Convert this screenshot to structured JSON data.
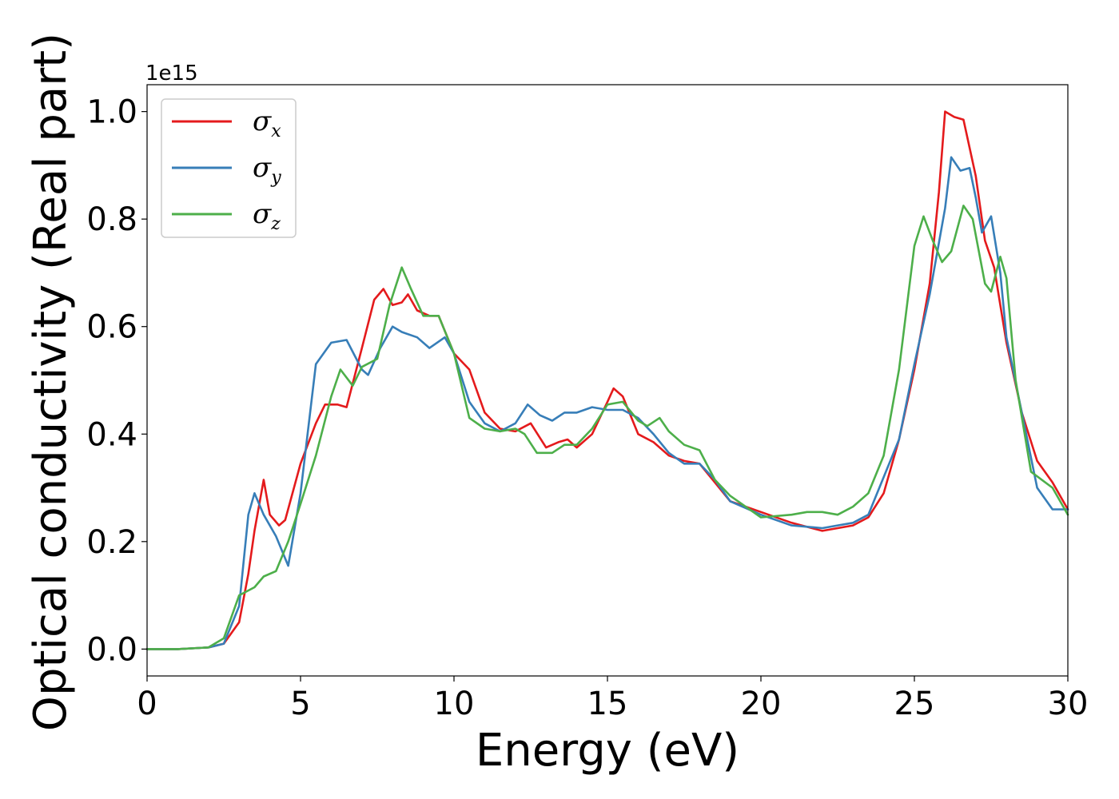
{
  "chart_data": {
    "type": "line",
    "xlabel": "Energy (eV)",
    "ylabel": "Optical conductivity (Real part)",
    "y_offset_label": "1e15",
    "xlim": [
      0,
      30
    ],
    "ylim": [
      -0.05,
      1.05
    ],
    "xticks": [
      0,
      5,
      10,
      15,
      20,
      25,
      30
    ],
    "yticks": [
      0.0,
      0.2,
      0.4,
      0.6,
      0.8,
      1.0
    ],
    "xtick_labels": [
      "0",
      "5",
      "10",
      "15",
      "20",
      "25",
      "30"
    ],
    "ytick_labels": [
      "0.0",
      "0.2",
      "0.4",
      "0.6",
      "0.8",
      "1.0"
    ],
    "grid": false,
    "legend": "top-left",
    "series": [
      {
        "name": "σx",
        "base": "σ",
        "sub": "x",
        "color": "#e41a1c",
        "points": [
          [
            0,
            0
          ],
          [
            1,
            0
          ],
          [
            2,
            0.003
          ],
          [
            2.5,
            0.01
          ],
          [
            3,
            0.05
          ],
          [
            3.3,
            0.14
          ],
          [
            3.5,
            0.22
          ],
          [
            3.8,
            0.315
          ],
          [
            4.0,
            0.25
          ],
          [
            4.3,
            0.23
          ],
          [
            4.5,
            0.24
          ],
          [
            5,
            0.345
          ],
          [
            5.5,
            0.42
          ],
          [
            5.8,
            0.455
          ],
          [
            6.2,
            0.455
          ],
          [
            6.5,
            0.45
          ],
          [
            7,
            0.56
          ],
          [
            7.4,
            0.65
          ],
          [
            7.7,
            0.67
          ],
          [
            8.0,
            0.64
          ],
          [
            8.3,
            0.645
          ],
          [
            8.5,
            0.66
          ],
          [
            8.8,
            0.63
          ],
          [
            9.2,
            0.62
          ],
          [
            9.5,
            0.62
          ],
          [
            10,
            0.55
          ],
          [
            10.5,
            0.52
          ],
          [
            11,
            0.44
          ],
          [
            11.5,
            0.41
          ],
          [
            12,
            0.405
          ],
          [
            12.5,
            0.42
          ],
          [
            13,
            0.375
          ],
          [
            13.4,
            0.385
          ],
          [
            13.7,
            0.39
          ],
          [
            14,
            0.375
          ],
          [
            14.5,
            0.4
          ],
          [
            15,
            0.46
          ],
          [
            15.2,
            0.485
          ],
          [
            15.5,
            0.47
          ],
          [
            16,
            0.4
          ],
          [
            16.5,
            0.385
          ],
          [
            17,
            0.36
          ],
          [
            17.5,
            0.35
          ],
          [
            18,
            0.345
          ],
          [
            18.5,
            0.31
          ],
          [
            19,
            0.275
          ],
          [
            20,
            0.255
          ],
          [
            21,
            0.235
          ],
          [
            22,
            0.22
          ],
          [
            22.5,
            0.225
          ],
          [
            23,
            0.23
          ],
          [
            23.5,
            0.245
          ],
          [
            24,
            0.29
          ],
          [
            24.5,
            0.39
          ],
          [
            25,
            0.52
          ],
          [
            25.5,
            0.68
          ],
          [
            25.8,
            0.85
          ],
          [
            26.0,
            1.0
          ],
          [
            26.3,
            0.99
          ],
          [
            26.6,
            0.985
          ],
          [
            27,
            0.88
          ],
          [
            27.3,
            0.76
          ],
          [
            27.6,
            0.71
          ],
          [
            28,
            0.57
          ],
          [
            28.5,
            0.44
          ],
          [
            29,
            0.35
          ],
          [
            29.5,
            0.31
          ],
          [
            30,
            0.26
          ]
        ]
      },
      {
        "name": "σy",
        "base": "σ",
        "sub": "y",
        "color": "#377eb8",
        "points": [
          [
            0,
            0
          ],
          [
            1,
            0
          ],
          [
            2,
            0.003
          ],
          [
            2.5,
            0.01
          ],
          [
            3,
            0.08
          ],
          [
            3.3,
            0.25
          ],
          [
            3.5,
            0.29
          ],
          [
            3.8,
            0.25
          ],
          [
            4.2,
            0.21
          ],
          [
            4.6,
            0.155
          ],
          [
            5,
            0.29
          ],
          [
            5.5,
            0.53
          ],
          [
            6,
            0.57
          ],
          [
            6.5,
            0.575
          ],
          [
            7,
            0.52
          ],
          [
            7.2,
            0.51
          ],
          [
            7.6,
            0.56
          ],
          [
            8.0,
            0.6
          ],
          [
            8.3,
            0.59
          ],
          [
            8.8,
            0.58
          ],
          [
            9.2,
            0.56
          ],
          [
            9.7,
            0.58
          ],
          [
            10,
            0.55
          ],
          [
            10.5,
            0.46
          ],
          [
            11,
            0.42
          ],
          [
            11.5,
            0.405
          ],
          [
            12,
            0.42
          ],
          [
            12.4,
            0.455
          ],
          [
            12.8,
            0.435
          ],
          [
            13.2,
            0.425
          ],
          [
            13.6,
            0.44
          ],
          [
            14,
            0.44
          ],
          [
            14.5,
            0.45
          ],
          [
            15,
            0.445
          ],
          [
            15.5,
            0.445
          ],
          [
            16,
            0.43
          ],
          [
            16.5,
            0.4
          ],
          [
            17,
            0.365
          ],
          [
            17.5,
            0.345
          ],
          [
            18,
            0.345
          ],
          [
            18.5,
            0.315
          ],
          [
            19,
            0.275
          ],
          [
            20,
            0.25
          ],
          [
            21,
            0.23
          ],
          [
            22,
            0.225
          ],
          [
            22.5,
            0.23
          ],
          [
            23,
            0.235
          ],
          [
            23.5,
            0.25
          ],
          [
            24,
            0.32
          ],
          [
            24.5,
            0.39
          ],
          [
            25,
            0.53
          ],
          [
            25.5,
            0.66
          ],
          [
            26,
            0.82
          ],
          [
            26.2,
            0.915
          ],
          [
            26.5,
            0.89
          ],
          [
            26.8,
            0.895
          ],
          [
            27.0,
            0.84
          ],
          [
            27.2,
            0.775
          ],
          [
            27.5,
            0.805
          ],
          [
            27.8,
            0.7
          ],
          [
            28,
            0.58
          ],
          [
            28.5,
            0.44
          ],
          [
            29,
            0.3
          ],
          [
            29.5,
            0.26
          ],
          [
            30,
            0.26
          ]
        ]
      },
      {
        "name": "σz",
        "base": "σ",
        "sub": "z",
        "color": "#4daf4a",
        "points": [
          [
            0,
            0
          ],
          [
            1,
            0
          ],
          [
            2,
            0.003
          ],
          [
            2.5,
            0.02
          ],
          [
            3,
            0.1
          ],
          [
            3.5,
            0.115
          ],
          [
            3.8,
            0.135
          ],
          [
            4.2,
            0.145
          ],
          [
            4.6,
            0.2
          ],
          [
            5,
            0.27
          ],
          [
            5.5,
            0.36
          ],
          [
            6,
            0.47
          ],
          [
            6.3,
            0.52
          ],
          [
            6.7,
            0.49
          ],
          [
            7,
            0.525
          ],
          [
            7.5,
            0.54
          ],
          [
            7.9,
            0.64
          ],
          [
            8.3,
            0.71
          ],
          [
            8.6,
            0.67
          ],
          [
            9.0,
            0.62
          ],
          [
            9.5,
            0.62
          ],
          [
            10,
            0.55
          ],
          [
            10.5,
            0.43
          ],
          [
            11,
            0.41
          ],
          [
            11.5,
            0.405
          ],
          [
            12,
            0.41
          ],
          [
            12.3,
            0.4
          ],
          [
            12.7,
            0.365
          ],
          [
            13.2,
            0.365
          ],
          [
            13.6,
            0.38
          ],
          [
            14,
            0.38
          ],
          [
            14.5,
            0.41
          ],
          [
            15,
            0.455
          ],
          [
            15.5,
            0.46
          ],
          [
            16,
            0.425
          ],
          [
            16.3,
            0.415
          ],
          [
            16.7,
            0.43
          ],
          [
            17,
            0.405
          ],
          [
            17.5,
            0.38
          ],
          [
            18,
            0.37
          ],
          [
            18.5,
            0.315
          ],
          [
            19,
            0.285
          ],
          [
            20,
            0.245
          ],
          [
            21,
            0.25
          ],
          [
            21.5,
            0.255
          ],
          [
            22,
            0.255
          ],
          [
            22.5,
            0.25
          ],
          [
            23,
            0.265
          ],
          [
            23.5,
            0.29
          ],
          [
            24,
            0.36
          ],
          [
            24.5,
            0.52
          ],
          [
            25,
            0.75
          ],
          [
            25.3,
            0.805
          ],
          [
            25.6,
            0.76
          ],
          [
            25.9,
            0.72
          ],
          [
            26.2,
            0.74
          ],
          [
            26.6,
            0.825
          ],
          [
            26.9,
            0.8
          ],
          [
            27.3,
            0.68
          ],
          [
            27.5,
            0.665
          ],
          [
            27.8,
            0.73
          ],
          [
            28,
            0.69
          ],
          [
            28.3,
            0.5
          ],
          [
            28.8,
            0.33
          ],
          [
            29.5,
            0.3
          ],
          [
            30,
            0.25
          ]
        ]
      }
    ]
  }
}
